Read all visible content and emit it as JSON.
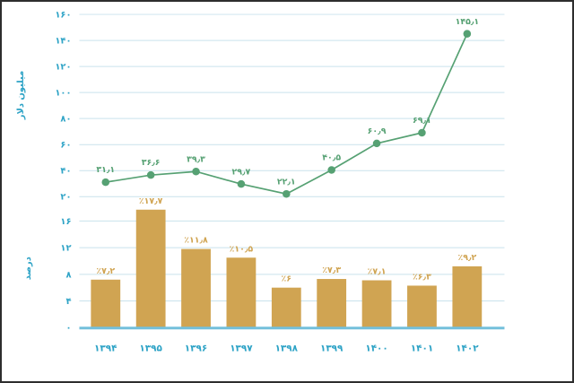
{
  "chart_data": {
    "type": "combo",
    "grid": true,
    "legend": false,
    "categories": [
      "۱۳۹۴",
      "۱۳۹۵",
      "۱۳۹۶",
      "۱۳۹۷",
      "۱۳۹۸",
      "۱۳۹۹",
      "۱۴۰۰",
      "۱۴۰۱",
      "۱۴۰۲"
    ],
    "line": {
      "type": "line",
      "axis_title": "میلیون دلار",
      "values": [
        31.1,
        36.6,
        39.3,
        29.7,
        22.1,
        40.5,
        60.9,
        69.1,
        145.1
      ],
      "point_labels": [
        "۳۱٫۱",
        "۳۶٫۶",
        "۳۹٫۳",
        "۲۹٫۷",
        "۲۲٫۱",
        "۴۰٫۵",
        "۶۰٫۹",
        "۶۹٫۱",
        "۱۴۵٫۱"
      ],
      "axis_range": [
        20,
        160
      ],
      "ticks": [
        20,
        40,
        60,
        80,
        100,
        120,
        140,
        160
      ],
      "tick_labels": [
        "۲۰",
        "۴۰",
        "۶۰",
        "۸۰",
        "۱۰۰",
        "۱۲۰",
        "۱۴۰",
        "۱۶۰"
      ],
      "color": "#56a173"
    },
    "bars": {
      "type": "bar",
      "axis_title": "درصد",
      "values": [
        7.2,
        17.7,
        11.8,
        10.5,
        6,
        7.3,
        7.1,
        6.3,
        9.2
      ],
      "bar_labels": [
        "٪۷٫۲",
        "٪۱۷٫۷",
        "٪۱۱٫۸",
        "٪۱۰٫۵",
        "٪۶",
        "٪۷٫۳",
        "٪۷٫۱",
        "٪۶٫۳",
        "٪۹٫۲"
      ],
      "axis_range": [
        0,
        16
      ],
      "ticks": [
        0,
        4,
        8,
        12,
        16
      ],
      "tick_labels": [
        "۰",
        "۴",
        "۸",
        "۱۲",
        "۱۶"
      ],
      "color": "#d0a452"
    },
    "colors": {
      "axis_text": "#2ea3c6",
      "grid": "#c9e2ec",
      "baseline": "#74c0dc",
      "line_series": "#56a173",
      "bar_series": "#d0a452",
      "background": "#ffffff",
      "border": "#2e2e2e"
    }
  }
}
